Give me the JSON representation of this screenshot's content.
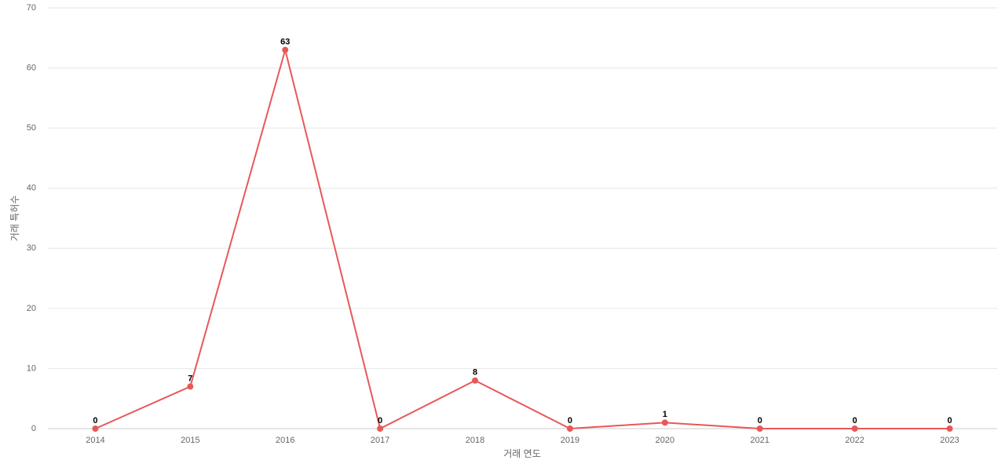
{
  "chart_data": {
    "type": "line",
    "x_label": "거래 연도",
    "y_label": "거래 특허수",
    "categories": [
      "2014",
      "2015",
      "2016",
      "2017",
      "2018",
      "2019",
      "2020",
      "2021",
      "2022",
      "2023"
    ],
    "values": [
      0,
      7,
      63,
      0,
      8,
      0,
      1,
      0,
      0,
      0
    ],
    "color": "#e85858",
    "ylim": [
      0,
      70
    ],
    "yticks": [
      0,
      10,
      20,
      30,
      40,
      50,
      60,
      70
    ],
    "grid": true
  }
}
